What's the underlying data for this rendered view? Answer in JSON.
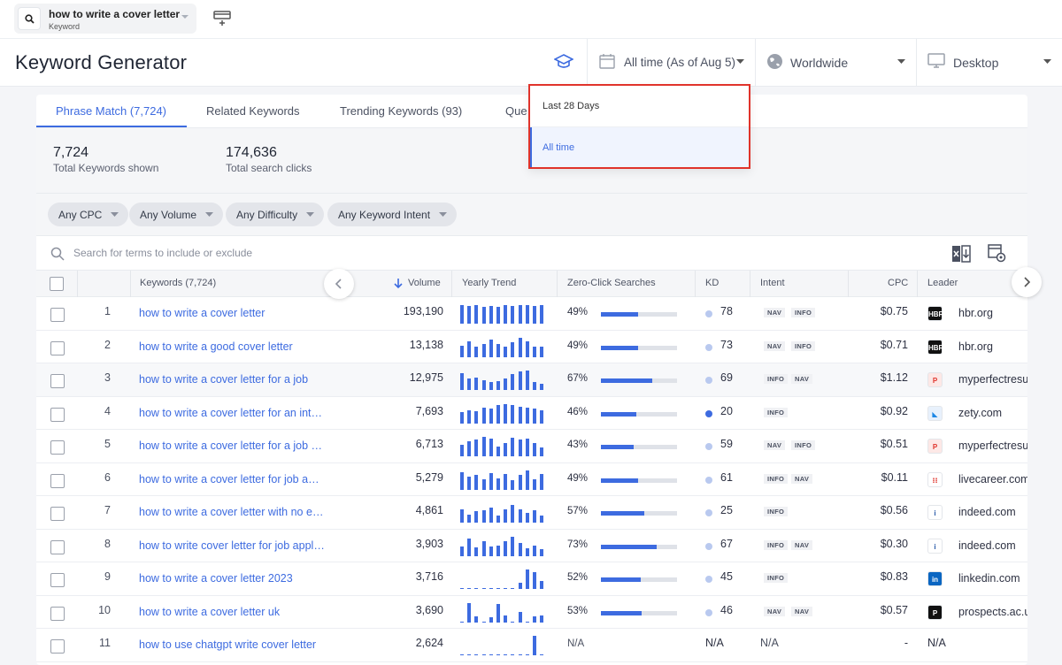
{
  "search": {
    "keyword": "how to write a cover letter",
    "type_label": "Keyword"
  },
  "page_title": "Keyword Generator",
  "header": {
    "time_filter": "All time (As of Aug 5)",
    "location": "Worldwide",
    "device": "Desktop"
  },
  "time_dropdown": {
    "options": [
      "Last 28 Days",
      "All time"
    ],
    "selected": "All time"
  },
  "tabs": [
    "Phrase Match (7,724)",
    "Related Keywords",
    "Trending Keywords (93)",
    "Que"
  ],
  "stats": {
    "total_keywords_value": "7,724",
    "total_keywords_label": "Total Keywords shown",
    "total_clicks_value": "174,636",
    "total_clicks_label": "Total search clicks"
  },
  "filters": [
    "Any CPC",
    "Any Volume",
    "Any Difficulty",
    "Any Keyword Intent"
  ],
  "table_search_placeholder": "Search for terms to include or exclude",
  "columns": {
    "keywords": "Keywords (7,724)",
    "volume": "Volume",
    "trend": "Yearly Trend",
    "zero_click": "Zero-Click Searches",
    "kd": "KD",
    "intent": "Intent",
    "cpc": "CPC",
    "leader": "Leader"
  },
  "colors": {
    "accent": "#3d6be0",
    "highlight_border": "#e0332b"
  },
  "rows": [
    {
      "n": "1",
      "keyword": "how to write a cover letter",
      "volume": "193,190",
      "trend": [
        0.95,
        0.9,
        0.95,
        0.85,
        0.9,
        0.85,
        0.95,
        0.9,
        0.95,
        0.95,
        0.9,
        0.95
      ],
      "zero_click": "49%",
      "zc": 0.49,
      "kd": "78",
      "kd_color": "#b9c9ef",
      "intent": [
        "NAV",
        "INFO"
      ],
      "cpc": "$0.75",
      "leader": "hbr.org",
      "fav": "HBR",
      "fav_bg": "#111",
      "fav_fg": "#fff"
    },
    {
      "n": "2",
      "keyword": "how to write a good cover letter",
      "volume": "13,138",
      "trend": [
        0.6,
        0.8,
        0.55,
        0.7,
        0.9,
        0.7,
        0.55,
        0.75,
        1.0,
        0.8,
        0.55,
        0.55
      ],
      "zero_click": "49%",
      "zc": 0.49,
      "kd": "73",
      "kd_color": "#b9c9ef",
      "intent": [
        "NAV",
        "INFO"
      ],
      "cpc": "$0.71",
      "leader": "hbr.org",
      "fav": "HBR",
      "fav_bg": "#111",
      "fav_fg": "#fff"
    },
    {
      "n": "3",
      "keyword": "how to write a cover letter for a job",
      "volume": "12,975",
      "trend": [
        0.85,
        0.6,
        0.65,
        0.5,
        0.4,
        0.45,
        0.6,
        0.8,
        0.95,
        1.0,
        0.4,
        0.3
      ],
      "zero_click": "67%",
      "zc": 0.67,
      "kd": "69",
      "kd_color": "#b9c9ef",
      "intent": [
        "INFO",
        "NAV"
      ],
      "cpc": "$1.12",
      "leader": "myperfectresume.com",
      "fav": "P",
      "fav_bg": "#fde8e6",
      "fav_fg": "#e0332b"
    },
    {
      "n": "4",
      "keyword": "how to write a cover letter for an internship",
      "volume": "7,693",
      "trend": [
        0.6,
        0.7,
        0.65,
        0.8,
        0.75,
        0.95,
        1.0,
        0.95,
        0.85,
        0.8,
        0.75,
        0.7
      ],
      "zero_click": "46%",
      "zc": 0.46,
      "kd": "20",
      "kd_color": "#3d6be0",
      "intent": [
        "INFO"
      ],
      "cpc": "$0.92",
      "leader": "zety.com",
      "fav": "◣",
      "fav_bg": "#e8f1fc",
      "fav_fg": "#1e88e5"
    },
    {
      "n": "5",
      "keyword": "how to write a cover letter for a job application",
      "volume": "6,713",
      "trend": [
        0.6,
        0.75,
        0.85,
        1.0,
        0.9,
        0.5,
        0.7,
        0.95,
        0.85,
        0.9,
        0.7,
        0.45
      ],
      "zero_click": "43%",
      "zc": 0.43,
      "kd": "59",
      "kd_color": "#b9c9ef",
      "intent": [
        "NAV",
        "INFO"
      ],
      "cpc": "$0.51",
      "leader": "myperfectresume.com",
      "fav": "P",
      "fav_bg": "#fde8e6",
      "fav_fg": "#e0332b"
    },
    {
      "n": "6",
      "keyword": "how to write a cover letter for job application",
      "volume": "5,279",
      "trend": [
        0.9,
        0.7,
        0.75,
        0.55,
        0.85,
        0.6,
        0.8,
        0.5,
        0.75,
        1.0,
        0.55,
        0.8
      ],
      "zero_click": "49%",
      "zc": 0.49,
      "kd": "61",
      "kd_color": "#b9c9ef",
      "intent": [
        "INFO",
        "NAV"
      ],
      "cpc": "$0.11",
      "leader": "livecareer.com",
      "fav": "⁝⁝",
      "fav_bg": "#fff",
      "fav_fg": "#e0332b"
    },
    {
      "n": "7",
      "keyword": "how to write a cover letter with no experience",
      "volume": "4,861",
      "trend": [
        0.7,
        0.4,
        0.6,
        0.65,
        0.75,
        0.35,
        0.7,
        0.9,
        0.7,
        0.5,
        0.65,
        0.35
      ],
      "zero_click": "57%",
      "zc": 0.57,
      "kd": "25",
      "kd_color": "#b9c9ef",
      "intent": [
        "INFO"
      ],
      "cpc": "$0.56",
      "leader": "indeed.com",
      "fav": "i",
      "fav_bg": "#fff",
      "fav_fg": "#2557a7"
    },
    {
      "n": "8",
      "keyword": "how to write cover letter for job application",
      "volume": "3,903",
      "trend": [
        0.5,
        0.9,
        0.45,
        0.75,
        0.5,
        0.55,
        0.75,
        1.0,
        0.7,
        0.4,
        0.55,
        0.35
      ],
      "zero_click": "73%",
      "zc": 0.73,
      "kd": "67",
      "kd_color": "#b9c9ef",
      "intent": [
        "INFO",
        "NAV"
      ],
      "cpc": "$0.30",
      "leader": "indeed.com",
      "fav": "i",
      "fav_bg": "#fff",
      "fav_fg": "#2557a7"
    },
    {
      "n": "9",
      "keyword": "how to write a cover letter 2023",
      "volume": "3,716",
      "trend": [
        0.05,
        0.05,
        0.05,
        0.05,
        0.05,
        0.05,
        0.05,
        0.05,
        0.3,
        1.0,
        0.85,
        0.4
      ],
      "zero_click": "52%",
      "zc": 0.52,
      "kd": "45",
      "kd_color": "#b9c9ef",
      "intent": [
        "INFO"
      ],
      "cpc": "$0.83",
      "leader": "linkedin.com",
      "fav": "in",
      "fav_bg": "#0a66c2",
      "fav_fg": "#fff"
    },
    {
      "n": "10",
      "keyword": "how to write a cover letter uk",
      "volume": "3,690",
      "trend": [
        0.05,
        1.0,
        0.3,
        0.05,
        0.25,
        0.95,
        0.35,
        0.05,
        0.55,
        0.05,
        0.3,
        0.35
      ],
      "zero_click": "53%",
      "zc": 0.53,
      "kd": "46",
      "kd_color": "#b9c9ef",
      "intent": [
        "NAV",
        "NAV"
      ],
      "cpc": "$0.57",
      "leader": "prospects.ac.uk",
      "fav": "P",
      "fav_bg": "#111",
      "fav_fg": "#fff"
    },
    {
      "n": "11",
      "keyword": "how to use chatgpt write cover letter",
      "volume": "2,624",
      "trend": [
        0.05,
        0.05,
        0.05,
        0.05,
        0.05,
        0.05,
        0.05,
        0.05,
        0.05,
        0.05,
        1.0,
        0.05
      ],
      "zero_click": "N/A",
      "zc": null,
      "kd": "N/A",
      "kd_color": null,
      "intent": [
        "N/A"
      ],
      "cpc": "-",
      "leader": "N/A",
      "fav": null,
      "fav_bg": null,
      "fav_fg": null
    }
  ]
}
